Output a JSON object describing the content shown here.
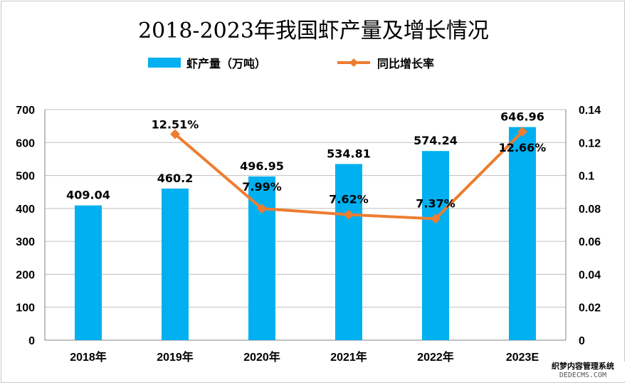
{
  "chart_data": {
    "type": "bar+line",
    "title": "2018-2023年我国虾产量及增长情况",
    "categories": [
      "2018年",
      "2019年",
      "2020年",
      "2021年",
      "2022年",
      "2023E"
    ],
    "series": [
      {
        "name": "虾产量（万吨）",
        "type": "bar",
        "axis": "left",
        "values": [
          409.04,
          460.2,
          496.95,
          534.81,
          574.24,
          646.96
        ],
        "labels": [
          "409.04",
          "460.2",
          "496.95",
          "534.81",
          "574.24",
          "646.96"
        ],
        "color": "#00b0f0"
      },
      {
        "name": "同比增长率",
        "type": "line",
        "axis": "right",
        "values": [
          null,
          0.1251,
          0.0799,
          0.0762,
          0.0737,
          0.1266
        ],
        "labels": [
          "",
          "12.51%",
          "7.99%",
          "7.62%",
          "7.37%",
          "12.66%"
        ],
        "color": "#ed7d31",
        "marker": "diamond"
      }
    ],
    "y_left": {
      "range": [
        0,
        700
      ],
      "ticks": [
        "0",
        "100",
        "200",
        "300",
        "400",
        "500",
        "600",
        "700"
      ]
    },
    "y_right": {
      "range": [
        0,
        0.14
      ],
      "ticks": [
        "0",
        "0.02",
        "0.04",
        "0.06",
        "0.08",
        "0.1",
        "0.12",
        "0.14"
      ]
    },
    "grid": true,
    "legend_position": "top"
  },
  "watermark": {
    "line1": "织梦内容管理系统",
    "line2": "DEDECMS.COM"
  }
}
